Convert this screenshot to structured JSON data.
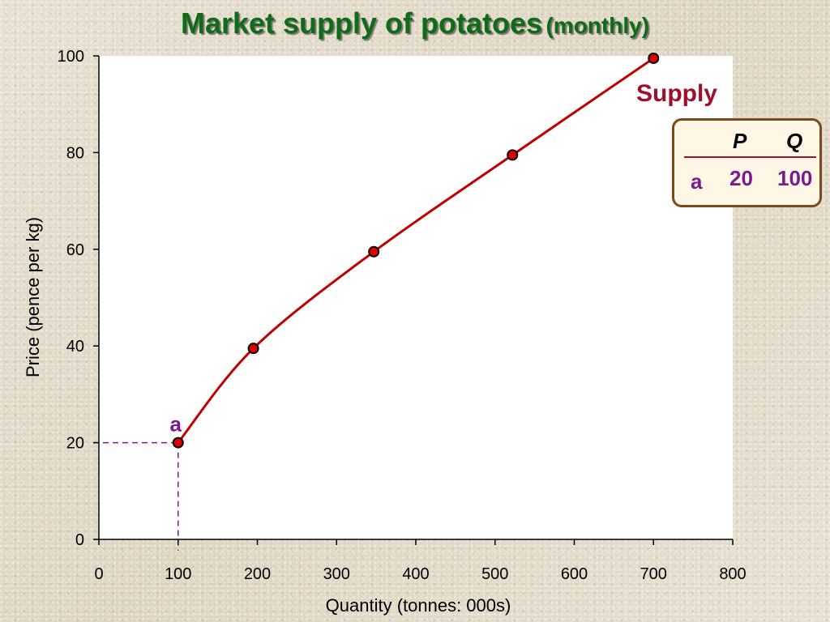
{
  "title": {
    "main": "Market supply of potatoes",
    "sub": "(monthly)"
  },
  "chart_data": {
    "type": "line",
    "xlabel": "Quantity (tonnes: 000s)",
    "ylabel": "Price (pence per kg)",
    "xlim": [
      0,
      800
    ],
    "ylim": [
      0,
      100
    ],
    "x_ticks": [
      0,
      100,
      200,
      300,
      400,
      500,
      600,
      700,
      800
    ],
    "y_ticks": [
      0,
      20,
      40,
      60,
      80,
      100
    ],
    "grid": false,
    "series": [
      {
        "name": "Supply",
        "color": "#c00000",
        "marker_color": "#e00000",
        "x": [
          100,
          195,
          347,
          522,
          700
        ],
        "y": [
          20,
          39.5,
          59.5,
          79.5,
          99.5
        ]
      }
    ],
    "annotations": [
      {
        "label": "a",
        "x": 100,
        "y": 20,
        "guide_lines": true,
        "color": "#7a1a8c"
      }
    ]
  },
  "table": {
    "headers": [
      "P",
      "Q"
    ],
    "rows": [
      {
        "label": "a",
        "values": [
          "20",
          "100"
        ]
      }
    ]
  }
}
